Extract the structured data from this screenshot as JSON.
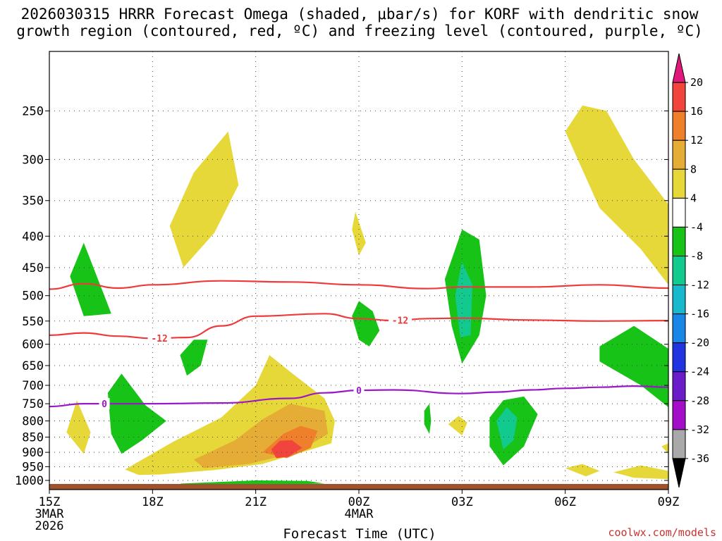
{
  "chart_data": {
    "type": "heatmap",
    "title_lines": [
      "2026030315 HRRR Forecast Omega (shaded, μbar/s) for KORF with dendritic snow",
      "growth region (contoured, red, ºC) and freezing level (contoured, purple, ºC)"
    ],
    "xlabel": "Forecast Time (UTC)",
    "x_ticks": [
      {
        "hours": 0,
        "lines": [
          "15Z",
          "3MAR",
          "2026"
        ]
      },
      {
        "hours": 3,
        "lines": [
          "18Z"
        ]
      },
      {
        "hours": 6,
        "lines": [
          "21Z"
        ]
      },
      {
        "hours": 9,
        "lines": [
          "00Z",
          "4MAR"
        ]
      },
      {
        "hours": 12,
        "lines": [
          "03Z"
        ]
      },
      {
        "hours": 15,
        "lines": [
          "06Z"
        ]
      },
      {
        "hours": 18,
        "lines": [
          "09Z"
        ]
      }
    ],
    "xlim": [
      0,
      18
    ],
    "y_ticks": [
      250,
      300,
      350,
      400,
      450,
      500,
      550,
      600,
      650,
      700,
      750,
      800,
      850,
      900,
      950,
      1000
    ],
    "ylim": [
      200,
      1035
    ],
    "colorbar_levels": [
      20,
      16,
      12,
      8,
      4,
      -4,
      -8,
      -12,
      -16,
      -20,
      -24,
      -28,
      -32,
      -36
    ],
    "colorbar_colors": [
      "#e0187a",
      "#f0443c",
      "#f07f2c",
      "#e6ad36",
      "#e6d838",
      "#ffffff",
      "#16c316",
      "#12c98e",
      "#18b9cc",
      "#1a86e6",
      "#2233e0",
      "#6a1cc8",
      "#a40ec8",
      "#a9a9a9",
      "#000000"
    ],
    "shaded_regions": [
      {
        "level": 4,
        "points": [
          [
            0.5,
            835
          ],
          [
            0.8,
            740
          ],
          [
            1.2,
            835
          ],
          [
            1.0,
            905
          ]
        ]
      },
      {
        "level": 4,
        "points": [
          [
            3.5,
            385
          ],
          [
            4.2,
            315
          ],
          [
            5.2,
            270
          ],
          [
            5.5,
            330
          ],
          [
            4.8,
            395
          ],
          [
            3.9,
            450
          ]
        ]
      },
      {
        "level": 4,
        "points": [
          [
            8.9,
            365
          ],
          [
            9.2,
            410
          ],
          [
            9.0,
            430
          ],
          [
            8.8,
            390
          ]
        ]
      },
      {
        "level": 4,
        "points": [
          [
            2.2,
            960
          ],
          [
            3.6,
            865
          ],
          [
            5.0,
            790
          ],
          [
            6.0,
            700
          ],
          [
            6.4,
            625
          ],
          [
            7.0,
            665
          ],
          [
            8.0,
            735
          ],
          [
            8.3,
            800
          ],
          [
            8.2,
            870
          ],
          [
            7.2,
            905
          ],
          [
            6.2,
            940
          ],
          [
            4.8,
            962
          ],
          [
            3.2,
            978
          ],
          [
            2.6,
            980
          ]
        ]
      },
      {
        "level": 8,
        "points": [
          [
            4.2,
            925
          ],
          [
            5.4,
            860
          ],
          [
            6.2,
            795
          ],
          [
            7.0,
            750
          ],
          [
            8.0,
            770
          ],
          [
            8.1,
            840
          ],
          [
            7.2,
            900
          ],
          [
            5.8,
            940
          ],
          [
            4.5,
            955
          ]
        ]
      },
      {
        "level": 12,
        "points": [
          [
            6.2,
            900
          ],
          [
            6.8,
            840
          ],
          [
            7.3,
            815
          ],
          [
            7.8,
            830
          ],
          [
            7.6,
            885
          ],
          [
            6.9,
            920
          ]
        ]
      },
      {
        "level": 16,
        "points": [
          [
            6.45,
            890
          ],
          [
            6.7,
            862
          ],
          [
            7.05,
            860
          ],
          [
            7.35,
            885
          ],
          [
            6.95,
            915
          ],
          [
            6.6,
            920
          ]
        ]
      },
      {
        "level": 4,
        "points": [
          [
            11.6,
            810
          ],
          [
            11.9,
            785
          ],
          [
            12.15,
            805
          ],
          [
            12.0,
            845
          ]
        ]
      },
      {
        "level": 4,
        "points": [
          [
            15.0,
            270
          ],
          [
            15.5,
            245
          ],
          [
            16.2,
            250
          ],
          [
            17.0,
            300
          ],
          [
            18.0,
            355
          ],
          [
            18.0,
            480
          ],
          [
            17.2,
            420
          ],
          [
            16.0,
            360
          ]
        ]
      },
      {
        "level": 4,
        "points": [
          [
            15.0,
            955
          ],
          [
            15.5,
            940
          ],
          [
            16.0,
            965
          ],
          [
            15.6,
            985
          ]
        ]
      },
      {
        "level": 4,
        "points": [
          [
            16.4,
            970
          ],
          [
            17.2,
            945
          ],
          [
            18.0,
            965
          ],
          [
            18.0,
            995
          ],
          [
            17.0,
            990
          ]
        ]
      },
      {
        "level": 4,
        "points": [
          [
            17.8,
            880
          ],
          [
            18.0,
            870
          ],
          [
            18.0,
            905
          ]
        ]
      },
      {
        "level": -4,
        "points": [
          [
            0.6,
            465
          ],
          [
            1.0,
            410
          ],
          [
            1.6,
            500
          ],
          [
            1.8,
            535
          ],
          [
            1.0,
            540
          ]
        ]
      },
      {
        "level": -4,
        "points": [
          [
            3.8,
            625
          ],
          [
            4.2,
            590
          ],
          [
            4.6,
            590
          ],
          [
            4.4,
            650
          ],
          [
            4.0,
            675
          ]
        ]
      },
      {
        "level": -4,
        "points": [
          [
            1.7,
            720
          ],
          [
            2.1,
            670
          ],
          [
            2.8,
            755
          ],
          [
            3.4,
            800
          ],
          [
            2.7,
            860
          ],
          [
            2.1,
            905
          ],
          [
            1.8,
            840
          ]
        ]
      },
      {
        "level": -4,
        "points": [
          [
            8.8,
            540
          ],
          [
            9.0,
            510
          ],
          [
            9.4,
            530
          ],
          [
            9.6,
            570
          ],
          [
            9.3,
            605
          ],
          [
            9.0,
            590
          ]
        ]
      },
      {
        "level": -4,
        "points": [
          [
            11.5,
            470
          ],
          [
            12.0,
            390
          ],
          [
            12.5,
            405
          ],
          [
            12.7,
            500
          ],
          [
            12.5,
            580
          ],
          [
            12.0,
            645
          ],
          [
            11.7,
            560
          ]
        ]
      },
      {
        "level": -4,
        "points": [
          [
            10.9,
            770
          ],
          [
            11.05,
            750
          ],
          [
            11.1,
            800
          ],
          [
            11.05,
            840
          ],
          [
            10.9,
            810
          ]
        ]
      },
      {
        "level": -4,
        "points": [
          [
            12.8,
            790
          ],
          [
            13.2,
            740
          ],
          [
            13.8,
            730
          ],
          [
            14.2,
            780
          ],
          [
            13.8,
            880
          ],
          [
            13.2,
            945
          ],
          [
            12.8,
            880
          ]
        ]
      },
      {
        "level": -4,
        "points": [
          [
            16.0,
            605
          ],
          [
            17.0,
            560
          ],
          [
            18.0,
            610
          ],
          [
            18.0,
            760
          ],
          [
            17.2,
            700
          ],
          [
            16.0,
            640
          ]
        ]
      },
      {
        "level": -4,
        "points": [
          [
            3.8,
            1012
          ],
          [
            6.0,
            1000
          ],
          [
            7.5,
            1002
          ],
          [
            8.0,
            1012
          ],
          [
            6.0,
            1018
          ],
          [
            4.0,
            1020
          ]
        ]
      },
      {
        "level": -8,
        "points": [
          [
            11.8,
            500
          ],
          [
            12.0,
            440
          ],
          [
            12.3,
            480
          ],
          [
            12.25,
            580
          ],
          [
            11.95,
            585
          ]
        ]
      },
      {
        "level": -8,
        "points": [
          [
            13.0,
            800
          ],
          [
            13.3,
            760
          ],
          [
            13.6,
            790
          ],
          [
            13.5,
            860
          ],
          [
            13.2,
            890
          ]
        ]
      }
    ],
    "series": [
      {
        "name": "-12 ºC (upper)",
        "color": "#ee3a3a",
        "label": "",
        "points": [
          [
            0,
            488
          ],
          [
            1,
            478
          ],
          [
            2,
            486
          ],
          [
            3,
            480
          ],
          [
            5,
            473
          ],
          [
            7,
            475
          ],
          [
            9,
            480
          ],
          [
            11,
            487
          ],
          [
            12,
            484
          ],
          [
            14,
            484
          ],
          [
            16,
            480
          ],
          [
            18,
            486
          ]
        ]
      },
      {
        "name": "-12 ºC (lower)",
        "color": "#ee3a3a",
        "label": "-12",
        "label_positions": [
          3.2,
          10.2
        ],
        "points": [
          [
            0,
            580
          ],
          [
            1,
            575
          ],
          [
            2,
            582
          ],
          [
            3,
            587
          ],
          [
            4,
            585
          ],
          [
            5,
            560
          ],
          [
            6,
            540
          ],
          [
            8,
            535
          ],
          [
            9,
            545
          ],
          [
            10,
            549
          ],
          [
            11,
            545
          ],
          [
            12,
            544
          ],
          [
            14,
            548
          ],
          [
            16,
            550
          ],
          [
            18,
            549
          ]
        ]
      },
      {
        "name": "0 ºC freezing level",
        "color": "#9a18c8",
        "label": "0",
        "label_positions": [
          1.6,
          9.0
        ],
        "points": [
          [
            0,
            758
          ],
          [
            1,
            750
          ],
          [
            3,
            750
          ],
          [
            5,
            748
          ],
          [
            7,
            735
          ],
          [
            8,
            720
          ],
          [
            9,
            713
          ],
          [
            10,
            712
          ],
          [
            12,
            722
          ],
          [
            13,
            718
          ],
          [
            14,
            712
          ],
          [
            15,
            708
          ],
          [
            16,
            705
          ],
          [
            17,
            702
          ],
          [
            18,
            705
          ]
        ]
      }
    ],
    "terrain_color": "#a0522d"
  },
  "credit": "coolwx.com/models"
}
